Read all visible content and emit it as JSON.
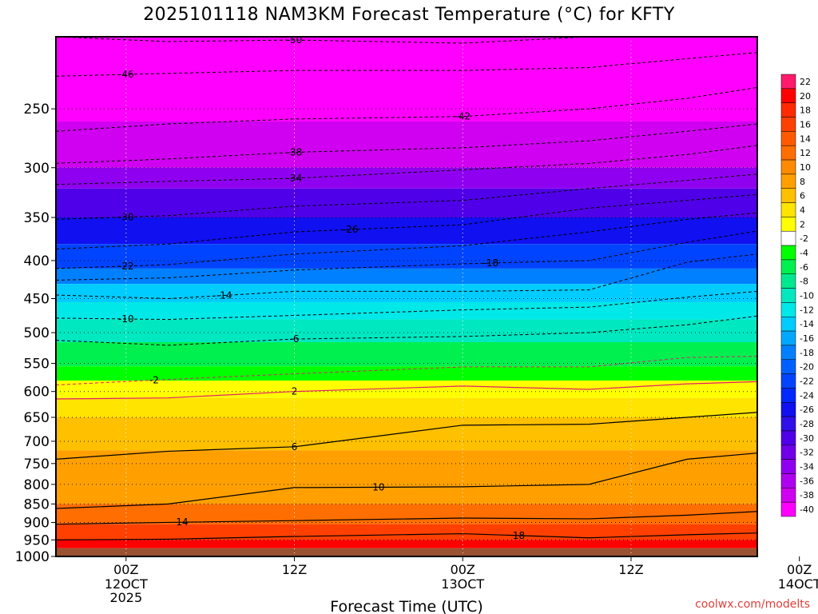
{
  "title": "2025101118 NAM3KM Forecast Temperature (°C) for KFTY",
  "credit": "coolwx.com/modelts",
  "chart_data": {
    "type": "heatmap",
    "title": "2025101118 NAM3KM Forecast Temperature (°C) for KFTY",
    "xlabel": "Forecast Time (UTC)",
    "ylabel": "",
    "y_scale": "log (pressure, hPa, inverted)",
    "ylim": [
      1000,
      200
    ],
    "xlim_hours_from_00Z_12OCT": [
      -5,
      45
    ],
    "x_ticks": [
      {
        "hour": 0,
        "label": "00Z",
        "date": "12OCT",
        "year": "2025"
      },
      {
        "hour": 12,
        "label": "12Z",
        "date": "",
        "year": ""
      },
      {
        "hour": 24,
        "label": "00Z",
        "date": "13OCT",
        "year": ""
      },
      {
        "hour": 36,
        "label": "12Z",
        "date": "",
        "year": ""
      },
      {
        "hour": 48,
        "label": "00Z",
        "date": "14OCT",
        "year": ""
      }
    ],
    "y_ticks": [
      250,
      300,
      350,
      400,
      450,
      500,
      550,
      600,
      650,
      700,
      750,
      800,
      850,
      900,
      950,
      1000
    ],
    "ground_level_hPa": 975,
    "colorbar": {
      "labels": [
        "22",
        "20",
        "18",
        "16",
        "14",
        "12",
        "10",
        "8",
        "6",
        "4",
        "2",
        "-2",
        "-4",
        "-6",
        "-8",
        "-10",
        "-12",
        "-14",
        "-16",
        "-18",
        "-20",
        "-22",
        "-24",
        "-26",
        "-28",
        "-30",
        "-32",
        "-34",
        "-36",
        "-38",
        "-40"
      ],
      "colors": [
        "#ff1a6b",
        "#ff0000",
        "#ff2a00",
        "#ff4000",
        "#ff5a00",
        "#ff6e00",
        "#ff8a00",
        "#ffa000",
        "#ffc000",
        "#ffe400",
        "#ffff00",
        "#ffffff",
        "#00ff00",
        "#00f050",
        "#00e890",
        "#00e8c0",
        "#00e8e8",
        "#00ccff",
        "#00a8ff",
        "#0080ff",
        "#0060ff",
        "#0044ff",
        "#0028ff",
        "#1010f0",
        "#3010e8",
        "#5000e8",
        "#7000e8",
        "#9000f0",
        "#b000f0",
        "#d000f0",
        "#ff00ff"
      ]
    },
    "contours": [
      {
        "value": -50,
        "pressure": [
          200,
          203,
          202,
          204,
          200,
          200,
          200
        ]
      },
      {
        "value": -46,
        "pressure": [
          226,
          224,
          222,
          222,
          220,
          214,
          210
        ]
      },
      {
        "value": -42,
        "pressure": [
          268,
          262,
          258,
          256,
          250,
          242,
          234
        ]
      },
      {
        "value": -38,
        "pressure": [
          296,
          292,
          286,
          282,
          276,
          268,
          262
        ]
      },
      {
        "value": -34,
        "pressure": [
          316,
          313,
          310,
          302,
          296,
          288,
          280
        ]
      },
      {
        "value": -30,
        "pressure": [
          352,
          348,
          338,
          332,
          320,
          312,
          306
        ]
      },
      {
        "value": -26,
        "pressure": [
          386,
          380,
          366,
          358,
          340,
          332,
          326
        ]
      },
      {
        "value": -22,
        "pressure": [
          410,
          405,
          392,
          382,
          366,
          352,
          345
        ]
      },
      {
        "value": -18,
        "pressure": [
          425,
          422,
          412,
          404,
          400,
          378,
          365
        ]
      },
      {
        "value": -14,
        "pressure": [
          445,
          450,
          440,
          440,
          438,
          402,
          392
        ]
      },
      {
        "value": -10,
        "pressure": [
          478,
          480,
          474,
          466,
          462,
          448,
          440
        ]
      },
      {
        "value": -6,
        "pressure": [
          512,
          520,
          510,
          506,
          500,
          488,
          475
        ]
      },
      {
        "value": -2,
        "pressure": [
          588,
          578,
          568,
          556,
          556,
          540,
          538
        ]
      },
      {
        "value": 2,
        "pressure": [
          614,
          612,
          600,
          590,
          596,
          586,
          582
        ]
      },
      {
        "value": 6,
        "pressure": [
          740,
          722,
          712,
          666,
          664,
          650,
          640
        ]
      },
      {
        "value": 10,
        "pressure": [
          862,
          850,
          808,
          806,
          800,
          740,
          726
        ]
      },
      {
        "value": 14,
        "pressure": [
          905,
          900,
          895,
          888,
          890,
          880,
          870
        ]
      },
      {
        "value": 18,
        "pressure": [
          950,
          948,
          940,
          932,
          944,
          935,
          930
        ]
      }
    ],
    "contour_x_hours": [
      -5,
      3,
      12,
      24,
      33,
      40,
      45
    ],
    "contour_label_hours": {
      "-50": 12,
      "-46": 0,
      "-42": 24,
      "-38": 12,
      "-34": 12,
      "-30": 0,
      "-26": 16,
      "-22": 0,
      "-18": 26,
      "-14": 7,
      "-10": 0,
      "-6": 12,
      "-2": 2,
      "2": 12,
      "6": 12,
      "10": 18,
      "14": 4,
      "18": 28
    },
    "color_fill_rows": [
      {
        "p_top": 200,
        "p_bot": 260,
        "value": -42
      },
      {
        "p_top": 260,
        "p_bot": 300,
        "value": -38
      },
      {
        "p_top": 300,
        "p_bot": 320,
        "value": -34
      },
      {
        "p_top": 320,
        "p_bot": 350,
        "value": -30
      },
      {
        "p_top": 350,
        "p_bot": 380,
        "value": -26
      },
      {
        "p_top": 380,
        "p_bot": 410,
        "value": -22
      },
      {
        "p_top": 410,
        "p_bot": 430,
        "value": -18
      },
      {
        "p_top": 430,
        "p_bot": 455,
        "value": -14
      },
      {
        "p_top": 455,
        "p_bot": 480,
        "value": -12
      },
      {
        "p_top": 480,
        "p_bot": 515,
        "value": -10
      },
      {
        "p_top": 515,
        "p_bot": 555,
        "value": -6
      },
      {
        "p_top": 555,
        "p_bot": 580,
        "value": -4
      },
      {
        "p_top": 580,
        "p_bot": 612,
        "value": 0
      },
      {
        "p_top": 612,
        "p_bot": 650,
        "value": 4
      },
      {
        "p_top": 650,
        "p_bot": 720,
        "value": 6
      },
      {
        "p_top": 720,
        "p_bot": 850,
        "value": 8
      },
      {
        "p_top": 850,
        "p_bot": 905,
        "value": 12
      },
      {
        "p_top": 905,
        "p_bot": 950,
        "value": 16
      },
      {
        "p_top": 950,
        "p_bot": 975,
        "value": 20
      }
    ],
    "grid": true,
    "legend_position": "right colorbar"
  }
}
